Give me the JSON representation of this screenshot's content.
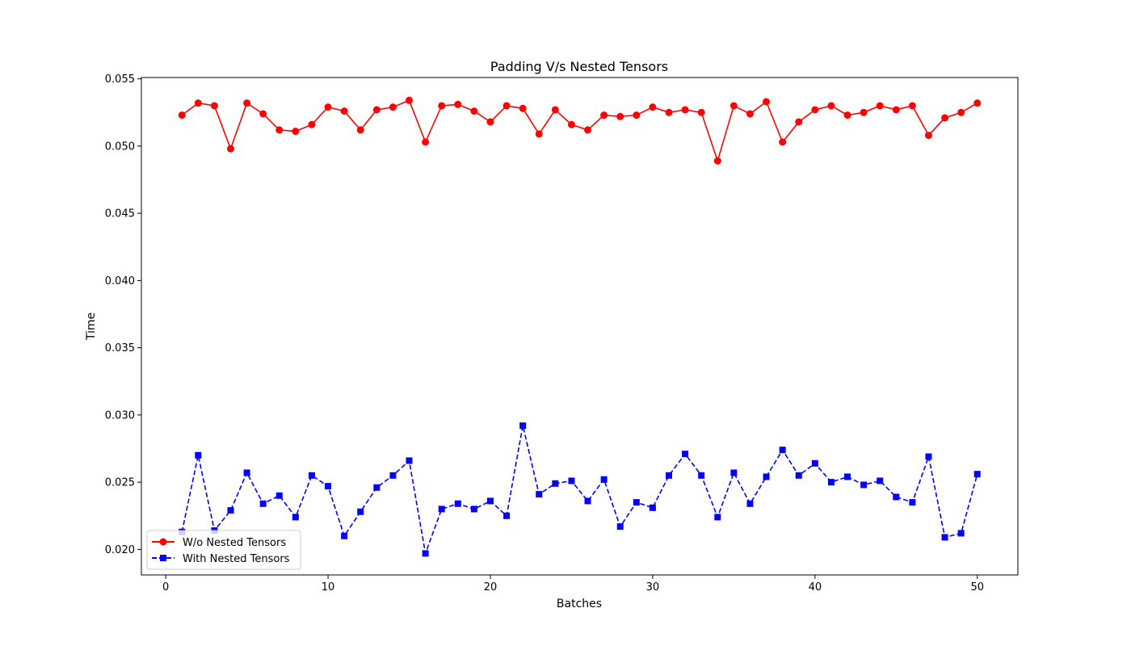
{
  "chart_data": {
    "type": "line",
    "title": "Padding V/s Nested Tensors",
    "xlabel": "Batches",
    "ylabel": "Time",
    "xlim": [
      -1.5,
      52.5
    ],
    "ylim": [
      0.0181,
      0.0551
    ],
    "xticks": [
      0,
      10,
      20,
      30,
      40,
      50
    ],
    "yticks": [
      0.02,
      0.025,
      0.03,
      0.035,
      0.04,
      0.045,
      0.05,
      0.055
    ],
    "ytick_labels": [
      "0.020",
      "0.025",
      "0.030",
      "0.035",
      "0.040",
      "0.045",
      "0.050",
      "0.055"
    ],
    "grid": false,
    "legend_position": "lower-left",
    "x": [
      1,
      2,
      3,
      4,
      5,
      6,
      7,
      8,
      9,
      10,
      11,
      12,
      13,
      14,
      15,
      16,
      17,
      18,
      19,
      20,
      21,
      22,
      23,
      24,
      25,
      26,
      27,
      28,
      29,
      30,
      31,
      32,
      33,
      34,
      35,
      36,
      37,
      38,
      39,
      40,
      41,
      42,
      43,
      44,
      45,
      46,
      47,
      48,
      49,
      50
    ],
    "series": [
      {
        "name": "W/o Nested Tensors",
        "color": "#ff0000",
        "marker": "circle",
        "linestyle": "solid",
        "values": [
          0.0523,
          0.0532,
          0.053,
          0.0498,
          0.0532,
          0.0524,
          0.0512,
          0.0511,
          0.0516,
          0.0529,
          0.0526,
          0.0512,
          0.0527,
          0.0529,
          0.0534,
          0.0503,
          0.053,
          0.0531,
          0.0526,
          0.0518,
          0.053,
          0.0528,
          0.0509,
          0.0527,
          0.0516,
          0.0512,
          0.0523,
          0.0522,
          0.0523,
          0.0529,
          0.0525,
          0.0527,
          0.0525,
          0.0489,
          0.053,
          0.0524,
          0.0533,
          0.0503,
          0.0518,
          0.0527,
          0.053,
          0.0523,
          0.0525,
          0.053,
          0.0527,
          0.053,
          0.0508,
          0.0521,
          0.0525,
          0.0532
        ]
      },
      {
        "name": "With Nested Tensors",
        "color": "#0000ff",
        "marker": "square",
        "linestyle": "dashed",
        "values": [
          0.0213,
          0.027,
          0.0214,
          0.0229,
          0.0257,
          0.0234,
          0.024,
          0.0224,
          0.0255,
          0.0247,
          0.021,
          0.0228,
          0.0246,
          0.0255,
          0.0266,
          0.0197,
          0.023,
          0.0234,
          0.023,
          0.0236,
          0.0225,
          0.0292,
          0.0241,
          0.0249,
          0.0251,
          0.0236,
          0.0252,
          0.0217,
          0.0235,
          0.0231,
          0.0255,
          0.0271,
          0.0255,
          0.0224,
          0.0257,
          0.0234,
          0.0254,
          0.0274,
          0.0255,
          0.0264,
          0.025,
          0.0254,
          0.0248,
          0.0251,
          0.0239,
          0.0235,
          0.0269,
          0.0209,
          0.0212,
          0.0256
        ]
      }
    ]
  }
}
